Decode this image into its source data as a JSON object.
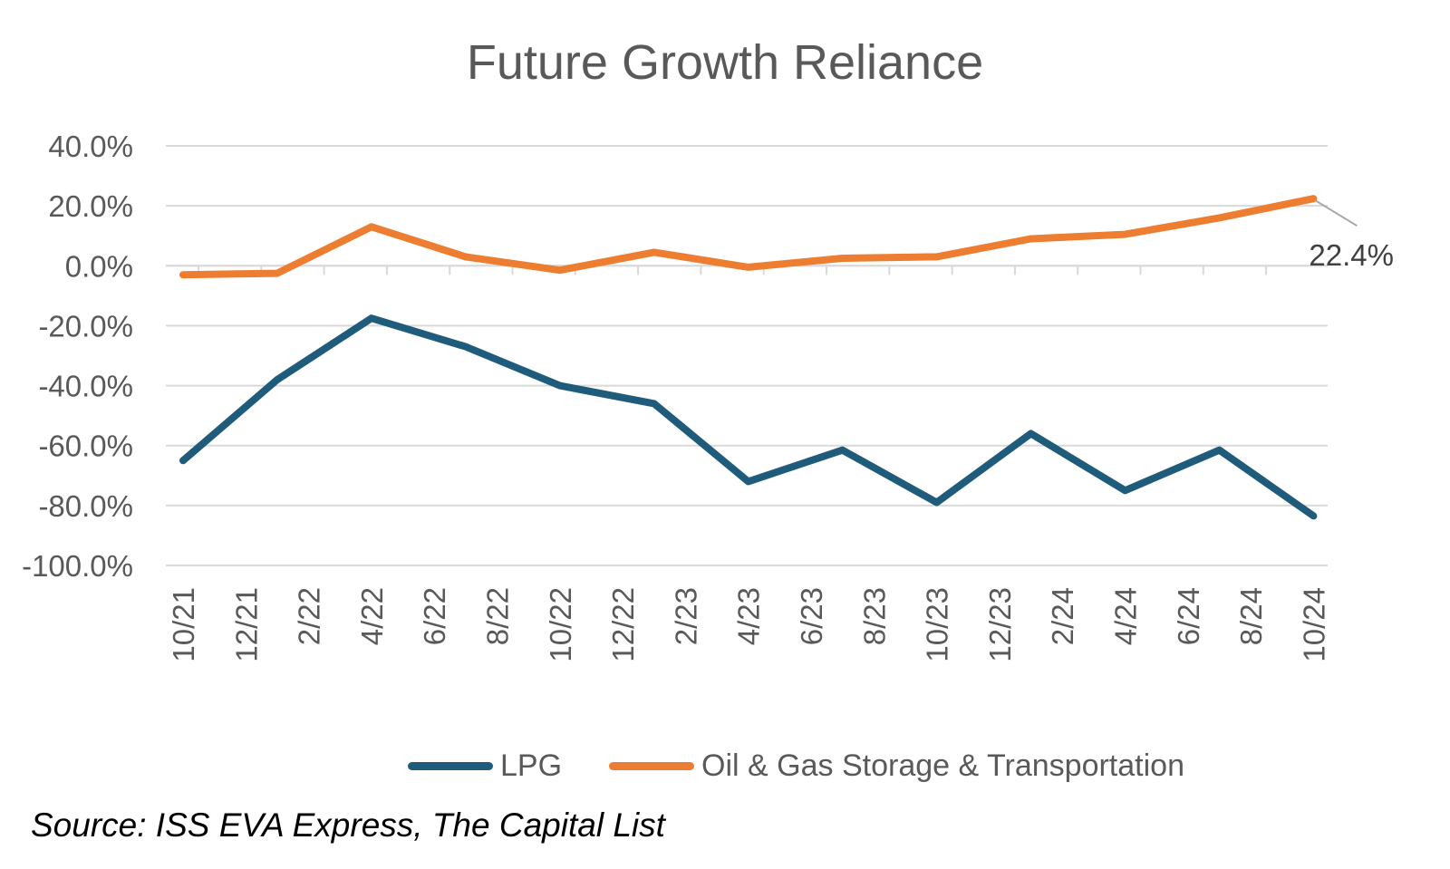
{
  "chart_data": {
    "type": "line",
    "title": "Future Growth Reliance",
    "x": [
      "10/21",
      "12/21",
      "2/22",
      "4/22",
      "6/22",
      "8/22",
      "10/22",
      "12/22",
      "2/23",
      "4/23",
      "6/23",
      "8/23",
      "10/23",
      "12/23",
      "2/24",
      "4/24",
      "6/24",
      "8/24",
      "10/24"
    ],
    "series": [
      {
        "name": "LPG",
        "color": "#1F5B7A",
        "points": [
          {
            "x": "10/21",
            "y": -65.0
          },
          {
            "x": "1/22",
            "y": -38.0
          },
          {
            "x": "4/22",
            "y": -17.5
          },
          {
            "x": "7/22",
            "y": -27.0
          },
          {
            "x": "10/22",
            "y": -40.0
          },
          {
            "x": "1/23",
            "y": -46.0
          },
          {
            "x": "4/23",
            "y": -72.0
          },
          {
            "x": "7/23",
            "y": -61.5
          },
          {
            "x": "10/23",
            "y": -79.0
          },
          {
            "x": "1/24",
            "y": -56.0
          },
          {
            "x": "4/24",
            "y": -75.0
          },
          {
            "x": "7/24",
            "y": -61.5
          },
          {
            "x": "10/24",
            "y": -83.5
          }
        ]
      },
      {
        "name": "Oil & Gas Storage & Transportation",
        "color": "#ED7D31",
        "points": [
          {
            "x": "10/21",
            "y": -3.0
          },
          {
            "x": "1/22",
            "y": -2.5
          },
          {
            "x": "4/22",
            "y": 13.0
          },
          {
            "x": "7/22",
            "y": 3.0
          },
          {
            "x": "10/22",
            "y": -1.5
          },
          {
            "x": "1/23",
            "y": 4.5
          },
          {
            "x": "4/23",
            "y": -0.5
          },
          {
            "x": "7/23",
            "y": 2.5
          },
          {
            "x": "10/23",
            "y": 3.0
          },
          {
            "x": "1/24",
            "y": 9.0
          },
          {
            "x": "4/24",
            "y": 10.5
          },
          {
            "x": "7/24",
            "y": 16.0
          },
          {
            "x": "10/24",
            "y": 22.4
          }
        ]
      }
    ],
    "y_ticks": [
      "40.0%",
      "20.0%",
      "0.0%",
      "-20.0%",
      "-40.0%",
      "-60.0%",
      "-80.0%",
      "-100.0%"
    ],
    "ylim": [
      -100,
      40
    ],
    "grid": true,
    "legend_position": "bottom",
    "annotation": {
      "series": "Oil & Gas Storage & Transportation",
      "x": "10/24",
      "text": "22.4%"
    },
    "source": "Source: ISS EVA Express, The Capital List"
  },
  "gridline_color": "#D9D9D9",
  "text_color": "#595959"
}
